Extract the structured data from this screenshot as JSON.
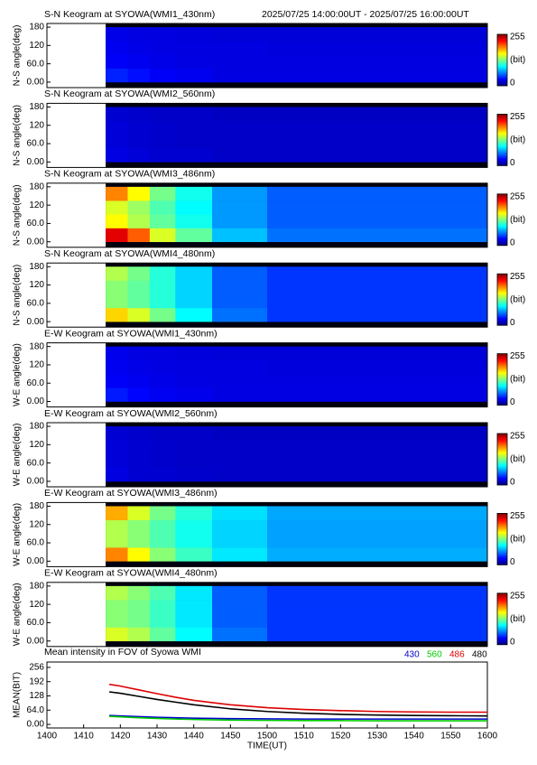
{
  "chart_data": [
    {
      "type": "heatmap",
      "title": "S-N Keogram at SYOWA(WMI1_430nm)",
      "subtitle": "2025/07/25 14:00:00UT - 2025/07/25 16:00:00UT",
      "ylabel": "N-S angle(deg)",
      "x": [
        856,
        862,
        868,
        875,
        885,
        900,
        960
      ],
      "y": [
        0,
        45,
        90,
        135,
        180
      ],
      "values": [
        [
          40,
          35,
          30,
          28,
          25,
          25
        ],
        [
          30,
          28,
          26,
          25,
          24,
          24
        ],
        [
          28,
          26,
          25,
          24,
          24,
          23
        ],
        [
          26,
          25,
          24,
          23,
          22,
          22
        ]
      ],
      "xlim": [
        840,
        960
      ],
      "ylim": [
        -18,
        192
      ],
      "yticks": [
        {
          "value": 0,
          "label": "0.00"
        },
        {
          "value": 60,
          "label": "60.0"
        },
        120,
        180
      ],
      "clim": [
        0,
        255
      ],
      "cticks": [
        0,
        255
      ],
      "clabel": "(bit)"
    },
    {
      "type": "heatmap",
      "title": "S-N Keogram at SYOWA(WMI2_560nm)",
      "ylabel": "N-S angle(deg)",
      "x": [
        856,
        862,
        868,
        875,
        885,
        900,
        960
      ],
      "y": [
        0,
        45,
        90,
        135,
        180
      ],
      "values": [
        [
          25,
          22,
          20,
          20,
          18,
          18
        ],
        [
          22,
          20,
          19,
          18,
          18,
          18
        ],
        [
          22,
          20,
          19,
          18,
          18,
          18
        ],
        [
          20,
          19,
          18,
          18,
          17,
          17
        ]
      ],
      "xlim": [
        840,
        960
      ],
      "ylim": [
        -18,
        192
      ],
      "yticks": [
        {
          "value": 0,
          "label": "0.00"
        },
        {
          "value": 60,
          "label": "60.0"
        },
        120,
        180
      ],
      "clim": [
        0,
        255
      ],
      "cticks": [
        0,
        255
      ],
      "clabel": "(bit)"
    },
    {
      "type": "heatmap",
      "title": "S-N Keogram at SYOWA(WMI3_486nm)",
      "ylabel": "N-S angle(deg)",
      "x": [
        856,
        862,
        868,
        875,
        885,
        900,
        960
      ],
      "y": [
        0,
        45,
        90,
        135,
        180
      ],
      "values": [
        [
          230,
          200,
          150,
          120,
          80,
          60
        ],
        [
          160,
          140,
          120,
          100,
          70,
          55
        ],
        [
          150,
          135,
          115,
          95,
          70,
          55
        ],
        [
          190,
          160,
          125,
          100,
          70,
          55
        ]
      ],
      "xlim": [
        840,
        960
      ],
      "ylim": [
        -18,
        192
      ],
      "yticks": [
        {
          "value": 0,
          "label": "0.00"
        },
        {
          "value": 60,
          "label": "60.0"
        },
        120,
        180
      ],
      "clim": [
        0,
        255
      ],
      "cticks": [
        0,
        255
      ],
      "clabel": "(bit)"
    },
    {
      "type": "heatmap",
      "title": "S-N Keogram at SYOWA(WMI4_480nm)",
      "ylabel": "N-S angle(deg)",
      "x": [
        856,
        862,
        868,
        875,
        885,
        900,
        960
      ],
      "y": [
        0,
        45,
        90,
        135,
        180
      ],
      "values": [
        [
          170,
          150,
          125,
          95,
          60,
          45
        ],
        [
          130,
          120,
          105,
          85,
          55,
          45
        ],
        [
          130,
          120,
          105,
          85,
          55,
          45
        ],
        [
          140,
          125,
          105,
          85,
          55,
          45
        ]
      ],
      "xlim": [
        840,
        960
      ],
      "ylim": [
        -18,
        192
      ],
      "yticks": [
        {
          "value": 0,
          "label": "0.00"
        },
        {
          "value": 60,
          "label": "60.0"
        },
        120,
        180
      ],
      "clim": [
        0,
        255
      ],
      "cticks": [
        0,
        255
      ],
      "clabel": "(bit)"
    },
    {
      "type": "heatmap",
      "title": "E-W Keogram at SYOWA(WMI1_430nm)",
      "ylabel": "W-E angle(deg)",
      "x": [
        856,
        862,
        868,
        875,
        885,
        900,
        960
      ],
      "y": [
        0,
        45,
        90,
        135,
        180
      ],
      "values": [
        [
          38,
          33,
          29,
          27,
          25,
          25
        ],
        [
          30,
          28,
          26,
          25,
          24,
          24
        ],
        [
          28,
          26,
          25,
          24,
          24,
          23
        ],
        [
          27,
          25,
          24,
          23,
          22,
          22
        ]
      ],
      "xlim": [
        840,
        960
      ],
      "ylim": [
        -18,
        192
      ],
      "yticks": [
        {
          "value": 0,
          "label": "0.00"
        },
        {
          "value": 60,
          "label": "60.0"
        },
        120,
        180
      ],
      "clim": [
        0,
        255
      ],
      "cticks": [
        0,
        255
      ],
      "clabel": "(bit)"
    },
    {
      "type": "heatmap",
      "title": "E-W Keogram at SYOWA(WMI2_560nm)",
      "ylabel": "W-E angle(deg)",
      "x": [
        856,
        862,
        868,
        875,
        885,
        900,
        960
      ],
      "y": [
        0,
        45,
        90,
        135,
        180
      ],
      "values": [
        [
          24,
          21,
          20,
          19,
          18,
          18
        ],
        [
          22,
          20,
          19,
          18,
          18,
          18
        ],
        [
          22,
          20,
          19,
          18,
          18,
          18
        ],
        [
          21,
          19,
          18,
          18,
          17,
          17
        ]
      ],
      "xlim": [
        840,
        960
      ],
      "ylim": [
        -18,
        192
      ],
      "yticks": [
        {
          "value": 0,
          "label": "0.00"
        },
        {
          "value": 60,
          "label": "60.0"
        },
        120,
        180
      ],
      "clim": [
        0,
        255
      ],
      "cticks": [
        0,
        255
      ],
      "clabel": "(bit)"
    },
    {
      "type": "heatmap",
      "title": "E-W Keogram at SYOWA(WMI3_486nm)",
      "ylabel": "W-E angle(deg)",
      "x": [
        856,
        862,
        868,
        875,
        885,
        900,
        960
      ],
      "y": [
        0,
        45,
        90,
        135,
        180
      ],
      "values": [
        [
          190,
          160,
          130,
          110,
          90,
          75
        ],
        [
          140,
          130,
          115,
          100,
          85,
          72
        ],
        [
          140,
          130,
          115,
          100,
          85,
          72
        ],
        [
          180,
          150,
          125,
          105,
          88,
          74
        ]
      ],
      "xlim": [
        840,
        960
      ],
      "ylim": [
        -18,
        192
      ],
      "yticks": [
        {
          "value": 0,
          "label": "0.00"
        },
        {
          "value": 60,
          "label": "60.0"
        },
        120,
        180
      ],
      "clim": [
        0,
        255
      ],
      "cticks": [
        0,
        255
      ],
      "clabel": "(bit)"
    },
    {
      "type": "heatmap",
      "title": "E-W Keogram at SYOWA(WMI4_480nm)",
      "ylabel": "W-E angle(deg)",
      "x": [
        856,
        862,
        868,
        875,
        885,
        900,
        960
      ],
      "y": [
        0,
        45,
        90,
        135,
        180
      ],
      "values": [
        [
          150,
          140,
          120,
          95,
          60,
          45
        ],
        [
          130,
          125,
          110,
          90,
          55,
          45
        ],
        [
          130,
          125,
          110,
          90,
          55,
          45
        ],
        [
          140,
          130,
          115,
          90,
          55,
          45
        ]
      ],
      "xlim": [
        840,
        960
      ],
      "ylim": [
        -18,
        192
      ],
      "yticks": [
        {
          "value": 0,
          "label": "0.00"
        },
        {
          "value": 60,
          "label": "60.0"
        },
        120,
        180
      ],
      "clim": [
        0,
        255
      ],
      "cticks": [
        0,
        255
      ],
      "clabel": "(bit)"
    },
    {
      "type": "line",
      "title": "Mean intensity in FOV of Syowa WMI",
      "ylabel": "MEAN(BIT)",
      "xlabel": "TIME(UT)",
      "x": [
        857,
        860,
        865,
        870,
        875,
        880,
        890,
        900,
        910,
        920,
        930,
        940,
        950,
        960
      ],
      "series": [
        {
          "name": "430",
          "color": "#0000cc",
          "values": [
            40,
            38,
            35,
            32,
            30,
            28,
            26,
            25,
            24,
            24,
            24,
            24,
            24,
            24
          ]
        },
        {
          "name": "560",
          "color": "#00cc00",
          "values": [
            36,
            34,
            30,
            27,
            24,
            22,
            19,
            18,
            17,
            17,
            16,
            16,
            16,
            16
          ]
        },
        {
          "name": "486",
          "color": "#dd0000",
          "values": [
            180,
            172,
            155,
            138,
            122,
            108,
            88,
            75,
            67,
            62,
            58,
            56,
            55,
            55
          ]
        },
        {
          "name": "480",
          "color": "#000000",
          "values": [
            146,
            140,
            126,
            112,
            100,
            88,
            70,
            58,
            50,
            45,
            42,
            40,
            39,
            38
          ]
        }
      ],
      "xlim": [
        840,
        960
      ],
      "ylim": [
        -16,
        280
      ],
      "xticks": [
        {
          "value": 840,
          "label": "1400"
        },
        {
          "value": 850,
          "label": "1410"
        },
        {
          "value": 860,
          "label": "1420"
        },
        {
          "value": 870,
          "label": "1430"
        },
        {
          "value": 880,
          "label": "1440"
        },
        {
          "value": 890,
          "label": "1450"
        },
        {
          "value": 900,
          "label": "1500"
        },
        {
          "value": 910,
          "label": "1510"
        },
        {
          "value": 920,
          "label": "1520"
        },
        {
          "value": 930,
          "label": "1530"
        },
        {
          "value": 940,
          "label": "1540"
        },
        {
          "value": 950,
          "label": "1550"
        },
        {
          "value": 960,
          "label": "1600"
        }
      ],
      "yticks": [
        {
          "value": 0,
          "label": "0.00"
        },
        {
          "value": 64,
          "label": "64.0"
        },
        128,
        192,
        256
      ]
    }
  ]
}
